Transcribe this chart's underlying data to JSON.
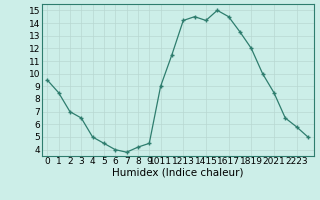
{
  "x": [
    0,
    1,
    2,
    3,
    4,
    5,
    6,
    7,
    8,
    9,
    10,
    11,
    12,
    13,
    14,
    15,
    16,
    17,
    18,
    19,
    20,
    21,
    22,
    23
  ],
  "y": [
    9.5,
    8.5,
    7.0,
    6.5,
    5.0,
    4.5,
    4.0,
    3.8,
    4.2,
    4.5,
    9.0,
    11.5,
    14.2,
    14.5,
    14.2,
    15.0,
    14.5,
    13.3,
    12.0,
    10.0,
    8.5,
    6.5,
    5.8,
    5.0
  ],
  "line_color": "#2e7d6e",
  "marker_color": "#2e7d6e",
  "bg_color": "#cceee8",
  "grid_color": "#b8d8d2",
  "xlabel": "Humidex (Indice chaleur)",
  "ylim": [
    3.5,
    15.5
  ],
  "yticks": [
    4,
    5,
    6,
    7,
    8,
    9,
    10,
    11,
    12,
    13,
    14,
    15
  ],
  "single_ticks": [
    0,
    1,
    2,
    3,
    4,
    5,
    6,
    7,
    8,
    9
  ],
  "pair_ticks": [
    10,
    12,
    14,
    16,
    18,
    20,
    22
  ],
  "single_labels": [
    "0",
    "1",
    "2",
    "3",
    "4",
    "5",
    "6",
    "7",
    "8",
    "9"
  ],
  "pair_labels": [
    "1011",
    "1213",
    "1415",
    "1617",
    "1819",
    "2021",
    "2223"
  ],
  "tick_fontsize": 6.5,
  "xlabel_fontsize": 7.5
}
